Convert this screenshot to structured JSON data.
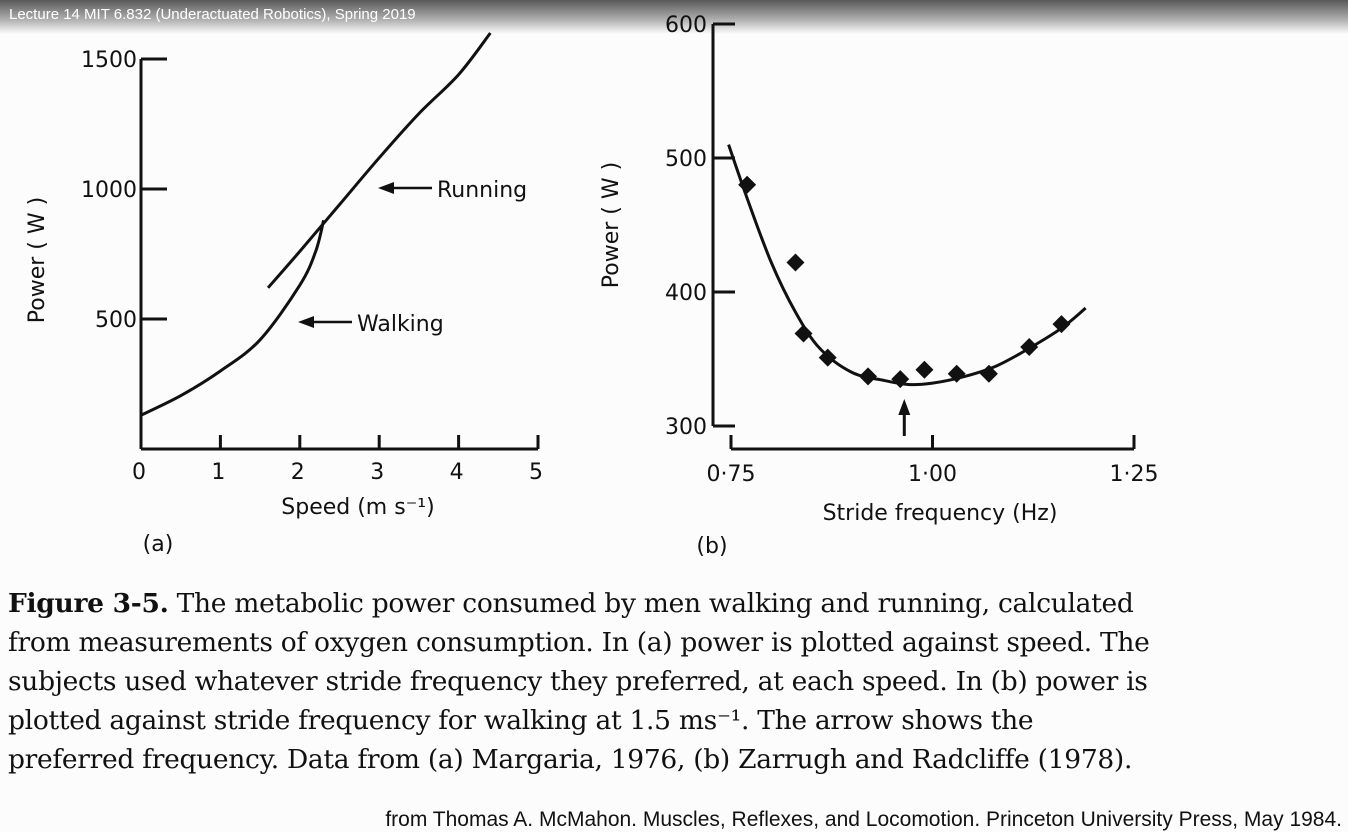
{
  "video": {
    "title": "Lecture 14 MIT 6.832 (Underactuated Robotics), Spring 2019"
  },
  "chart_data": [
    {
      "type": "line",
      "panel_label": "(a)",
      "xlabel": "Speed (m s⁻¹)",
      "ylabel": "Power ( W )",
      "xlim": [
        0,
        5
      ],
      "ylim": [
        0,
        1500
      ],
      "x_ticks": [
        "0",
        "1",
        "2",
        "3",
        "4",
        "5"
      ],
      "y_ticks": [
        "500",
        "1000",
        "1500"
      ],
      "series": [
        {
          "name": "Walking",
          "x": [
            0,
            0.5,
            1.0,
            1.5,
            2.0,
            2.2,
            2.3
          ],
          "y": [
            130,
            205,
            300,
            420,
            630,
            760,
            880
          ]
        },
        {
          "name": "Running",
          "x": [
            1.6,
            2.0,
            2.5,
            3.0,
            3.5,
            4.0,
            4.4
          ],
          "y": [
            620,
            760,
            940,
            1120,
            1290,
            1440,
            1600
          ]
        }
      ],
      "annotations": [
        "Running",
        "Walking"
      ]
    },
    {
      "type": "scatter",
      "panel_label": "(b)",
      "xlabel": "Stride frequency (Hz)",
      "ylabel": "Power ( W )",
      "xlim": [
        0.75,
        1.25
      ],
      "ylim": [
        300,
        600
      ],
      "x_ticks": [
        "0·75",
        "1·00",
        "1·25"
      ],
      "y_ticks": [
        "300",
        "400",
        "500",
        "600"
      ],
      "points": {
        "x": [
          0.77,
          0.83,
          0.84,
          0.87,
          0.92,
          0.96,
          0.99,
          1.03,
          1.07,
          1.12,
          1.16
        ],
        "y": [
          480,
          422,
          369,
          351,
          337,
          335,
          342,
          339,
          339,
          359,
          376
        ]
      },
      "fit_curve": {
        "x": [
          0.747,
          0.77,
          0.8,
          0.83,
          0.86,
          0.9,
          0.94,
          0.97,
          1.0,
          1.04,
          1.08,
          1.12,
          1.16,
          1.19
        ],
        "y": [
          510,
          470,
          422,
          385,
          358,
          340,
          334,
          331,
          332,
          337,
          345,
          358,
          373,
          388
        ]
      },
      "preferred_frequency_arrow_x": 0.965
    }
  ],
  "caption": {
    "label": "Figure 3-5.",
    "text": "The metabolic power consumed by men walking and running, calculated from measurements of oxygen consumption. In (a) power is plotted against speed. The subjects used whatever stride frequency they preferred, at each speed. In (b) power is plotted against stride frequency for walking at 1.5 ms⁻¹. The arrow shows the preferred frequency. Data from (a) Margaria, 1976, (b) Zarrugh and Radcliffe (1978)."
  },
  "source_credit": "from Thomas A. McMahon. Muscles, Reflexes, and Locomotion. Princeton University Press, May 1984."
}
